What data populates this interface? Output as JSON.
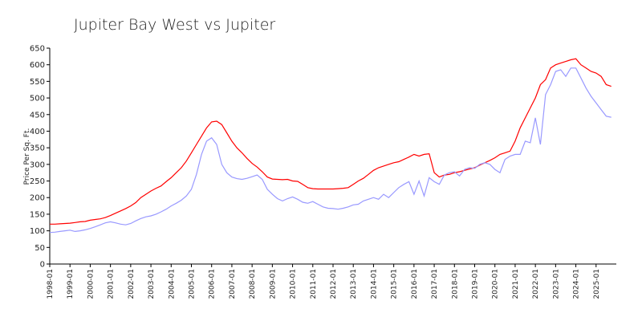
{
  "chart_data": {
    "type": "line",
    "title": "Jupiter Bay West vs Jupiter",
    "y_label": "Price Per Sq. Ft.",
    "x": [
      "1998-01",
      "1998-04",
      "1998-07",
      "1998-10",
      "1999-01",
      "1999-04",
      "1999-07",
      "1999-10",
      "2000-01",
      "2000-04",
      "2000-07",
      "2000-10",
      "2001-01",
      "2001-04",
      "2001-07",
      "2001-10",
      "2002-01",
      "2002-04",
      "2002-07",
      "2002-10",
      "2003-01",
      "2003-04",
      "2003-07",
      "2003-10",
      "2004-01",
      "2004-04",
      "2004-07",
      "2004-10",
      "2005-01",
      "2005-04",
      "2005-07",
      "2005-10",
      "2006-01",
      "2006-04",
      "2006-07",
      "2006-10",
      "2007-01",
      "2007-04",
      "2007-07",
      "2007-10",
      "2008-01",
      "2008-04",
      "2008-07",
      "2008-10",
      "2009-01",
      "2009-04",
      "2009-07",
      "2009-10",
      "2010-01",
      "2010-04",
      "2010-07",
      "2010-10",
      "2011-01",
      "2011-04",
      "2011-07",
      "2011-10",
      "2012-01",
      "2012-04",
      "2012-07",
      "2012-10",
      "2013-01",
      "2013-04",
      "2013-07",
      "2013-10",
      "2014-01",
      "2014-04",
      "2014-07",
      "2014-10",
      "2015-01",
      "2015-04",
      "2015-07",
      "2015-10",
      "2016-01",
      "2016-04",
      "2016-07",
      "2016-10",
      "2017-01",
      "2017-04",
      "2017-07",
      "2017-10",
      "2018-01",
      "2018-04",
      "2018-07",
      "2018-10",
      "2019-01",
      "2019-04",
      "2019-07",
      "2019-10",
      "2020-01",
      "2020-04",
      "2020-07",
      "2020-10",
      "2021-01",
      "2021-04",
      "2021-07",
      "2021-10",
      "2022-01",
      "2022-04",
      "2022-07",
      "2022-10",
      "2023-01",
      "2023-04",
      "2023-07",
      "2023-10",
      "2024-01",
      "2024-04",
      "2024-07",
      "2024-10",
      "2025-01",
      "2025-04",
      "2025-07",
      "2025-10"
    ],
    "series": [
      {
        "color": "#ff0000",
        "values": [
          120,
          120,
          121,
          122,
          123,
          125,
          127,
          128,
          132,
          134,
          136,
          140,
          146,
          153,
          160,
          167,
          175,
          185,
          200,
          210,
          220,
          228,
          235,
          248,
          260,
          275,
          290,
          310,
          335,
          360,
          385,
          410,
          428,
          430,
          420,
          395,
          370,
          350,
          335,
          318,
          303,
          292,
          278,
          262,
          256,
          255,
          254,
          255,
          250,
          249,
          240,
          230,
          227,
          226,
          226,
          226,
          226,
          227,
          228,
          230,
          240,
          250,
          258,
          270,
          282,
          290,
          295,
          300,
          305,
          308,
          315,
          322,
          330,
          325,
          330,
          332,
          275,
          262,
          268,
          270,
          275,
          278,
          282,
          286,
          290,
          298,
          305,
          312,
          320,
          330,
          335,
          340,
          370,
          410,
          440,
          470,
          500,
          540,
          555,
          590,
          600,
          605,
          610,
          615,
          618,
          600,
          590,
          580,
          575,
          565,
          540,
          535
        ]
      },
      {
        "color": "#9999ff",
        "values": [
          95,
          96,
          98,
          100,
          102,
          98,
          100,
          103,
          107,
          112,
          118,
          124,
          127,
          124,
          120,
          118,
          122,
          130,
          137,
          142,
          145,
          150,
          157,
          165,
          175,
          183,
          192,
          205,
          225,
          270,
          330,
          370,
          380,
          360,
          300,
          275,
          262,
          257,
          255,
          258,
          263,
          268,
          255,
          225,
          210,
          197,
          190,
          197,
          202,
          195,
          186,
          183,
          188,
          180,
          172,
          168,
          167,
          165,
          168,
          172,
          178,
          180,
          190,
          195,
          200,
          195,
          210,
          200,
          215,
          230,
          240,
          248,
          210,
          250,
          205,
          260,
          248,
          240,
          268,
          275,
          278,
          265,
          285,
          290,
          288,
          300,
          305,
          300,
          285,
          275,
          315,
          325,
          330,
          330,
          370,
          365,
          440,
          360,
          510,
          540,
          580,
          585,
          565,
          590,
          590,
          560,
          530,
          505,
          485,
          465,
          445,
          442
        ]
      }
    ],
    "xlim": [
      "1998-01",
      "2026-01"
    ],
    "xticks": [
      "1998-01",
      "1999-01",
      "2000-01",
      "2001-01",
      "2002-01",
      "2003-01",
      "2004-01",
      "2005-01",
      "2006-01",
      "2007-01",
      "2008-01",
      "2009-01",
      "2010-01",
      "2011-01",
      "2012-01",
      "2013-01",
      "2014-01",
      "2015-01",
      "2016-01",
      "2017-01",
      "2018-01",
      "2019-01",
      "2020-01",
      "2021-01",
      "2022-01",
      "2023-01",
      "2024-01",
      "2025-01"
    ],
    "ylim": [
      0,
      650
    ],
    "yticks": [
      0,
      50,
      100,
      150,
      200,
      250,
      300,
      350,
      400,
      450,
      500,
      550,
      600,
      650
    ]
  }
}
